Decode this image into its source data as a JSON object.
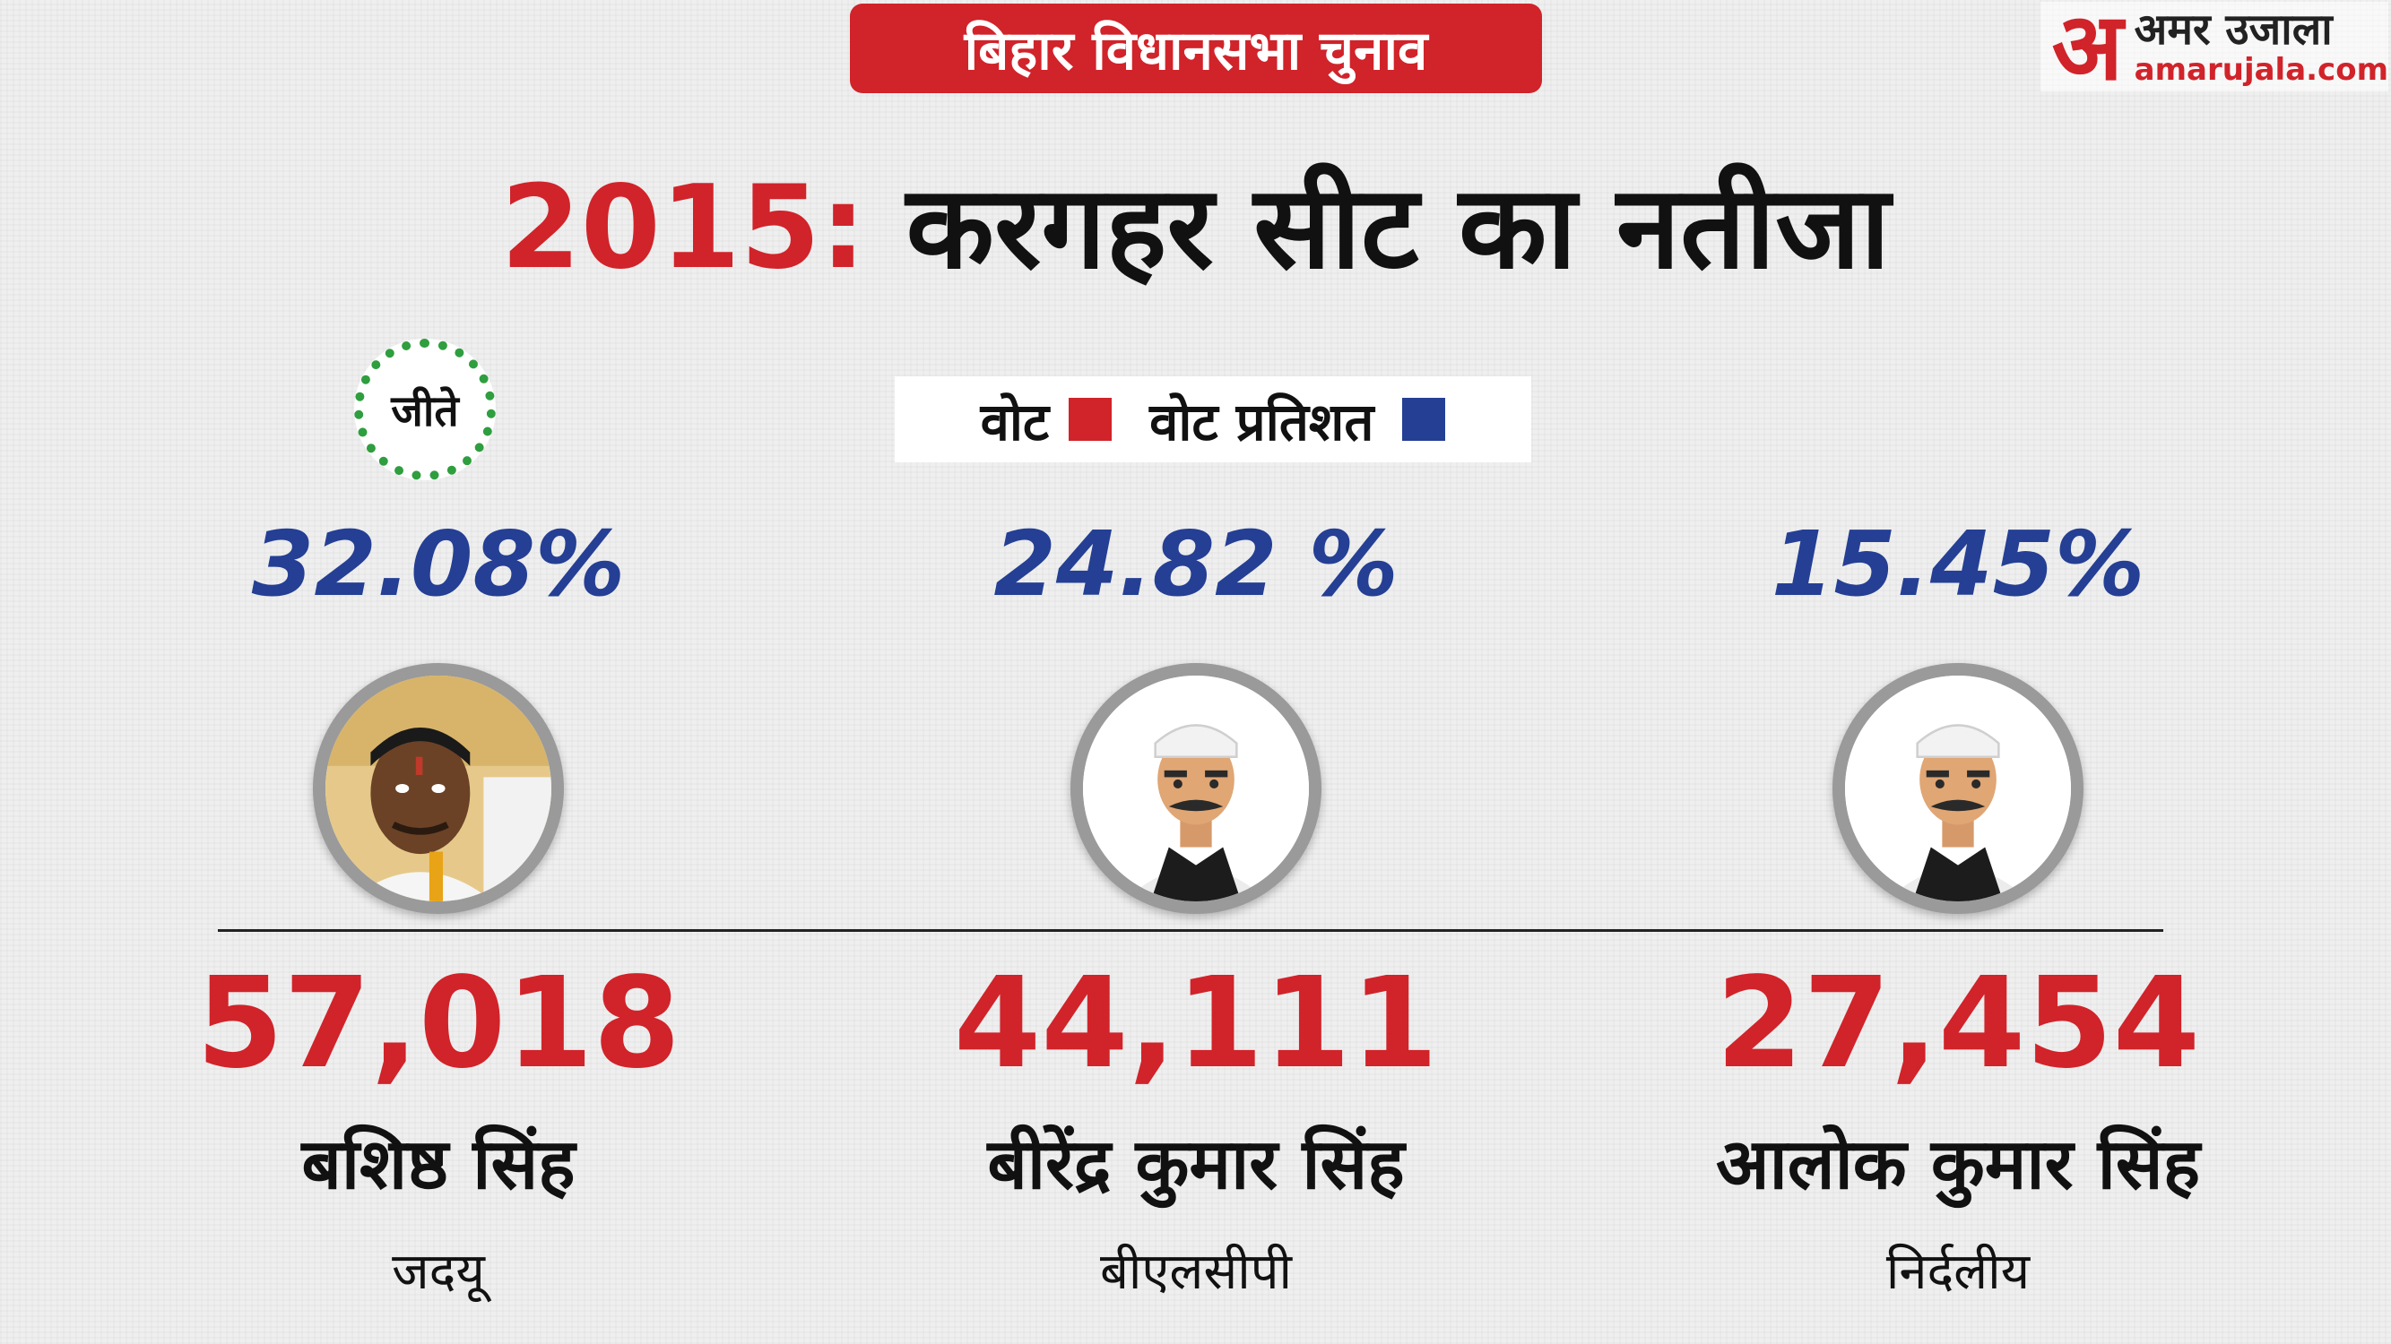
{
  "tag": "बिहार विधानसभा चुनाव",
  "logo": {
    "hindi": "अमर उजाला",
    "url": "amarujala.com",
    "mark": "अ"
  },
  "headline": {
    "year": "2015:",
    "text": "करगहर सीट का नतीजा"
  },
  "winner_stamp": "जीते",
  "legend": {
    "votes_label": "वोट",
    "percent_label": "वोट प्रतिशत",
    "votes_color": "#d1232a",
    "percent_color": "#243f94"
  },
  "candidates": [
    {
      "percent": "32.08%",
      "votes": "57,018",
      "name": "बशिष्ठ सिंह",
      "party": "जदयू",
      "winner": true,
      "avatar": "candidate-photo"
    },
    {
      "percent": "24.82 %",
      "votes": "44,111",
      "name": "बीरेंद्र कुमार सिंह",
      "party": "बीएलसीपी",
      "winner": false,
      "avatar": "politician-cartoon-icon"
    },
    {
      "percent": "15.45%",
      "votes": "27,454",
      "name": "आलोक कुमार सिंह",
      "party": "निर्दलीय",
      "winner": false,
      "avatar": "politician-cartoon-icon"
    }
  ]
}
